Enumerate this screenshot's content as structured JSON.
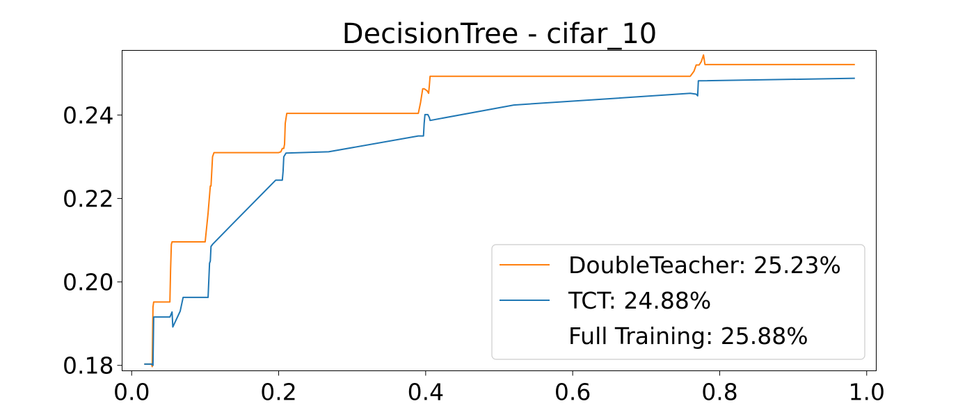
{
  "chart_data": {
    "type": "line",
    "title": "DecisionTree - cifar_10",
    "xlabel": "",
    "ylabel": "",
    "xlim": [
      -0.013,
      1.013
    ],
    "ylim": [
      0.1787,
      0.2555
    ],
    "xticks": [
      0.0,
      0.2,
      0.4,
      0.6,
      0.8,
      1.0
    ],
    "xtick_labels": [
      "0.0",
      "0.2",
      "0.4",
      "0.6",
      "0.8",
      "1.0"
    ],
    "yticks": [
      0.18,
      0.2,
      0.22,
      0.24
    ],
    "ytick_labels": [
      "0.18",
      "0.20",
      "0.22",
      "0.24"
    ],
    "grid": false,
    "legend_position": "lower-right",
    "legend": [
      {
        "label": "DoubleTeacher: 25.23%",
        "color": "#ff7f0e"
      },
      {
        "label": "TCT: 24.88%",
        "color": "#1f77b4"
      },
      {
        "label": "Full Training: 25.88%",
        "color": "none"
      }
    ],
    "series": [
      {
        "color": "#ff7f0e",
        "x": [
          0.018,
          0.027,
          0.028,
          0.029,
          0.03,
          0.052,
          0.053,
          0.054,
          0.055,
          0.1,
          0.104,
          0.107,
          0.108,
          0.11,
          0.112,
          0.2,
          0.203,
          0.205,
          0.207,
          0.208,
          0.209,
          0.211,
          0.39,
          0.393,
          0.396,
          0.398,
          0.402,
          0.404,
          0.405,
          0.406,
          0.76,
          0.765,
          0.768,
          0.772,
          0.775,
          0.778,
          0.78,
          0.983
        ],
        "y": [
          0.1803,
          0.1803,
          0.1797,
          0.194,
          0.1952,
          0.1952,
          0.203,
          0.209,
          0.2096,
          0.2096,
          0.2165,
          0.223,
          0.223,
          0.23,
          0.231,
          0.231,
          0.2312,
          0.232,
          0.232,
          0.233,
          0.238,
          0.2404,
          0.2404,
          0.243,
          0.2463,
          0.2463,
          0.2458,
          0.2452,
          0.247,
          0.2493,
          0.2493,
          0.2505,
          0.252,
          0.252,
          0.2528,
          0.2544,
          0.2521,
          0.2521
        ]
      },
      {
        "color": "#1f77b4",
        "x": [
          0.018,
          0.028,
          0.029,
          0.03,
          0.052,
          0.055,
          0.056,
          0.066,
          0.07,
          0.103,
          0.104,
          0.106,
          0.107,
          0.108,
          0.11,
          0.135,
          0.196,
          0.205,
          0.206,
          0.207,
          0.21,
          0.268,
          0.39,
          0.397,
          0.398,
          0.399,
          0.403,
          0.405,
          0.406,
          0.52,
          0.76,
          0.768,
          0.77,
          0.771,
          0.983
        ],
        "y": [
          0.1803,
          0.1803,
          0.18,
          0.1916,
          0.1916,
          0.1928,
          0.1892,
          0.193,
          0.1963,
          0.1963,
          0.1963,
          0.2045,
          0.205,
          0.2085,
          0.209,
          0.2135,
          0.2244,
          0.2244,
          0.2265,
          0.23,
          0.2309,
          0.2312,
          0.235,
          0.235,
          0.238,
          0.2401,
          0.2401,
          0.2394,
          0.2387,
          0.2424,
          0.2452,
          0.245,
          0.2446,
          0.2482,
          0.2488
        ]
      }
    ]
  }
}
